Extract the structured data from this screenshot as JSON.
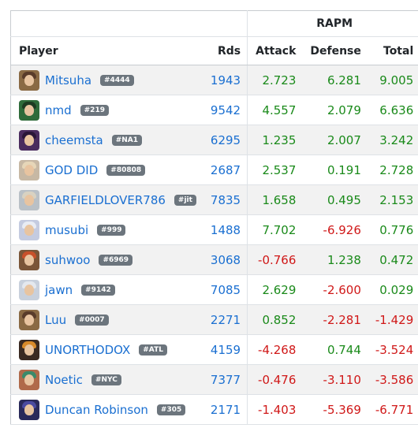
{
  "header": {
    "group_label": "RAPM",
    "columns": [
      "Player",
      "Rds",
      "Attack",
      "Defense",
      "Total"
    ]
  },
  "colors": {
    "link": "#1a6fd1",
    "positive": "#1a8a1a",
    "negative": "#d01818",
    "tag_bg": "#6c757d"
  },
  "rows": [
    {
      "name": "Mitsuha",
      "tag": "#4444",
      "rds": "1943",
      "attack": "2.723",
      "defense": "6.281",
      "total": "9.005",
      "avatar_bg": "#8a6a44",
      "hair": "#5a3c2a"
    },
    {
      "name": "nmd",
      "tag": "#219",
      "rds": "9542",
      "attack": "4.557",
      "defense": "2.079",
      "total": "6.636",
      "avatar_bg": "#2f6b3a",
      "hair": "#1d3b22"
    },
    {
      "name": "cheemsta",
      "tag": "#NA1",
      "rds": "6295",
      "attack": "1.235",
      "defense": "2.007",
      "total": "3.242",
      "avatar_bg": "#4a2c5e",
      "hair": "#2a1638"
    },
    {
      "name": "GOD DID",
      "tag": "#80808",
      "rds": "2687",
      "attack": "2.537",
      "defense": "0.191",
      "total": "2.728",
      "avatar_bg": "#c7b8a4",
      "hair": "#e6d6b8"
    },
    {
      "name": "GARFIELDLOVER786",
      "tag": "#jit",
      "rds": "7835",
      "attack": "1.658",
      "defense": "0.495",
      "total": "2.153",
      "avatar_bg": "#b9c0c6",
      "hair": "#d8d2c2"
    },
    {
      "name": "musubi",
      "tag": "#999",
      "rds": "1488",
      "attack": "7.702",
      "defense": "-6.926",
      "total": "0.776",
      "avatar_bg": "#c4cbe0",
      "hair": "#e8ecf4"
    },
    {
      "name": "suhwoo",
      "tag": "#6969",
      "rds": "3068",
      "attack": "-0.766",
      "defense": "1.238",
      "total": "0.472",
      "avatar_bg": "#7a5538",
      "hair": "#c8502a"
    },
    {
      "name": "jawn",
      "tag": "#9142",
      "rds": "7085",
      "attack": "2.629",
      "defense": "-2.600",
      "total": "0.029",
      "avatar_bg": "#c8d0dc",
      "hair": "#e4e8ee"
    },
    {
      "name": "Luu",
      "tag": "#0007",
      "rds": "2271",
      "attack": "0.852",
      "defense": "-2.281",
      "total": "-1.429",
      "avatar_bg": "#8a6a44",
      "hair": "#5a3c2a"
    },
    {
      "name": "UNORTHODOX",
      "tag": "#ATL",
      "rds": "4159",
      "attack": "-4.268",
      "defense": "0.744",
      "total": "-3.524",
      "avatar_bg": "#3a2a22",
      "hair": "#d88a2a"
    },
    {
      "name": "Noetic",
      "tag": "#NYC",
      "rds": "7377",
      "attack": "-0.476",
      "defense": "-3.110",
      "total": "-3.586",
      "avatar_bg": "#b06a4a",
      "hair": "#3a8a6a"
    },
    {
      "name": "Duncan Robinson",
      "tag": "#305",
      "rds": "2171",
      "attack": "-1.403",
      "defense": "-5.369",
      "total": "-6.771",
      "avatar_bg": "#2a2a5a",
      "hair": "#4a4aa0"
    }
  ]
}
